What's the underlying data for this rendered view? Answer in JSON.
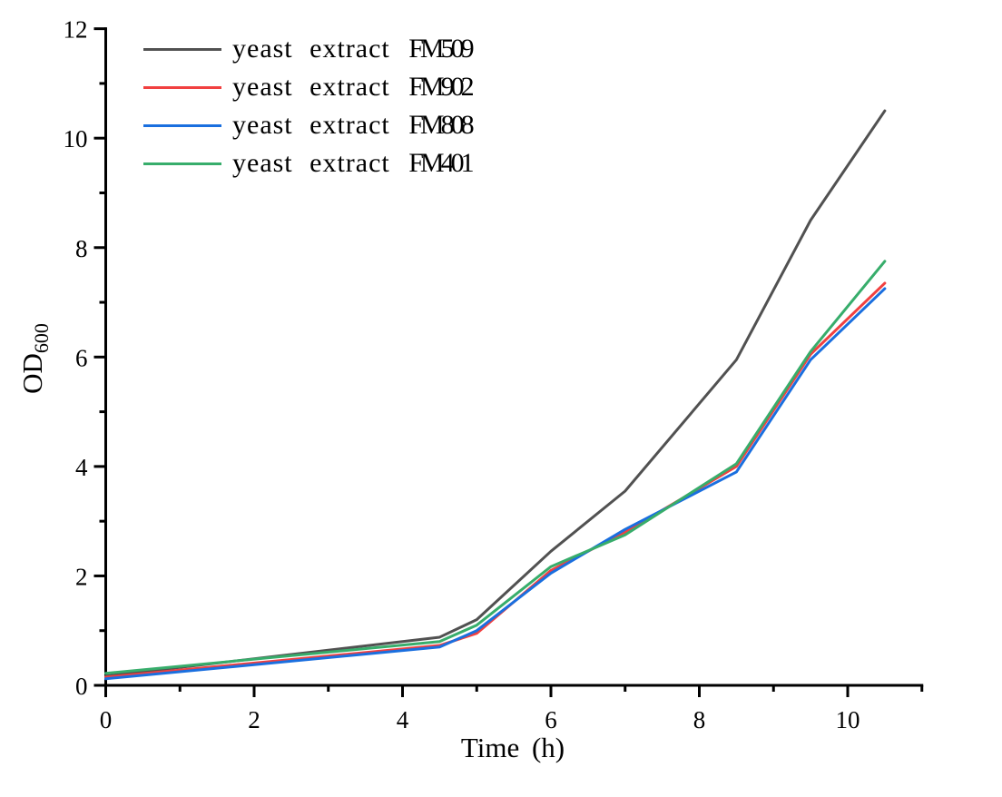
{
  "chart_data": {
    "type": "line",
    "title": "",
    "xlabel": "Time (h)",
    "ylabel": "OD",
    "ylabel_sub": "600",
    "xlim": [
      0,
      11
    ],
    "ylim": [
      0,
      12
    ],
    "x_major_ticks": [
      0,
      2,
      4,
      6,
      8,
      10
    ],
    "x_minor_ticks": [
      1,
      3,
      5,
      7,
      9,
      11
    ],
    "y_major_ticks": [
      0,
      2,
      4,
      6,
      8,
      10,
      12
    ],
    "y_minor_ticks": [
      1,
      3,
      5,
      7,
      9,
      11
    ],
    "grid": false,
    "legend_position": "top-left",
    "axis_color": "#000000",
    "x": [
      0,
      4.5,
      5,
      6,
      7,
      8.5,
      9.5,
      10.5
    ],
    "series": [
      {
        "name": "yeast extract FM509",
        "label_prefix": "yeast extract",
        "code": "FM509",
        "color": "#515151",
        "values": [
          0.17,
          0.88,
          1.2,
          2.45,
          3.55,
          5.95,
          8.5,
          10.5
        ]
      },
      {
        "name": "yeast extract FM902",
        "label_prefix": "yeast extract",
        "code": "FM902",
        "color": "#F14040",
        "values": [
          0.15,
          0.73,
          0.95,
          2.1,
          2.8,
          4.0,
          6.05,
          7.35
        ]
      },
      {
        "name": "yeast extract FM808",
        "label_prefix": "yeast extract",
        "code": "FM808",
        "color": "#1A6FDF",
        "values": [
          0.12,
          0.7,
          1.0,
          2.05,
          2.85,
          3.9,
          5.95,
          7.25
        ]
      },
      {
        "name": "yeast extract FM401",
        "label_prefix": "yeast extract",
        "code": "FM401",
        "color": "#37AD6B",
        "values": [
          0.22,
          0.8,
          1.1,
          2.17,
          2.75,
          4.05,
          6.1,
          7.75
        ]
      }
    ]
  }
}
